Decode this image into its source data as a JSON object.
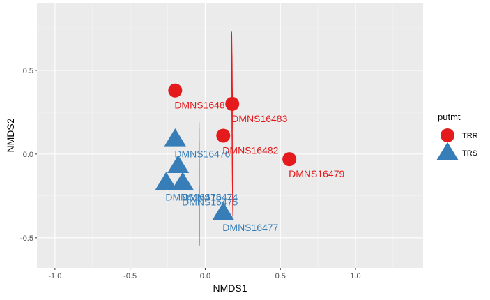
{
  "chart_data": {
    "type": "scatter",
    "xlabel": "NMDS1",
    "ylabel": "NMDS2",
    "xlim": [
      -1.12,
      1.45
    ],
    "ylim": [
      -0.68,
      0.9
    ],
    "x_ticks": [
      -1.0,
      -0.5,
      0.0,
      0.5,
      1.0
    ],
    "x_tick_labels": [
      "-1.0",
      "-0.5",
      "0.0",
      "0.5",
      "1.0"
    ],
    "y_ticks": [
      -0.5,
      0.0,
      0.5
    ],
    "y_tick_labels": [
      "-0.5",
      "0.0",
      "0.5"
    ],
    "grid": true,
    "background_color": "#ebebeb",
    "legend": {
      "title": "putmt",
      "placement": "right",
      "entries": [
        {
          "label": "TRR",
          "color": "#e41a1c",
          "shape": "circle"
        },
        {
          "label": "TRS",
          "color": "#377eb8",
          "shape": "triangle"
        }
      ]
    },
    "series": [
      {
        "name": "TRR",
        "color": "#e41a1c",
        "shape": "circle",
        "points": [
          {
            "x": -0.2,
            "y": 0.38,
            "label": "DMNS1648"
          },
          {
            "x": 0.18,
            "y": 0.3,
            "label": "DMNS16483"
          },
          {
            "x": 0.12,
            "y": 0.11,
            "label": "DMNS16482"
          },
          {
            "x": 0.56,
            "y": -0.03,
            "label": "DMNS16479"
          }
        ],
        "ellipse": {
          "center": [
            0.18,
            0.18
          ],
          "semi_axes": [
            1.18,
            0.26
          ],
          "rotation_deg": -25
        }
      },
      {
        "name": "TRS",
        "color": "#377eb8",
        "shape": "triangle",
        "points": [
          {
            "x": -0.2,
            "y": 0.09,
            "label": "DMNS16476"
          },
          {
            "x": -0.18,
            "y": -0.07,
            "label": ""
          },
          {
            "x": -0.26,
            "y": -0.17,
            "label": "DMNS16478"
          },
          {
            "x": -0.15,
            "y": -0.17,
            "label": "DMNS16474"
          },
          {
            "x": 0.12,
            "y": -0.35,
            "label": "DMNS16477"
          }
        ],
        "extra_labels": [
          {
            "x": -0.15,
            "y": -0.17,
            "label": "DMNS16475"
          }
        ],
        "ellipse": {
          "center": [
            -0.04,
            -0.18
          ],
          "semi_axes": [
            0.43,
            0.2
          ],
          "rotation_deg": -55
        }
      }
    ]
  }
}
